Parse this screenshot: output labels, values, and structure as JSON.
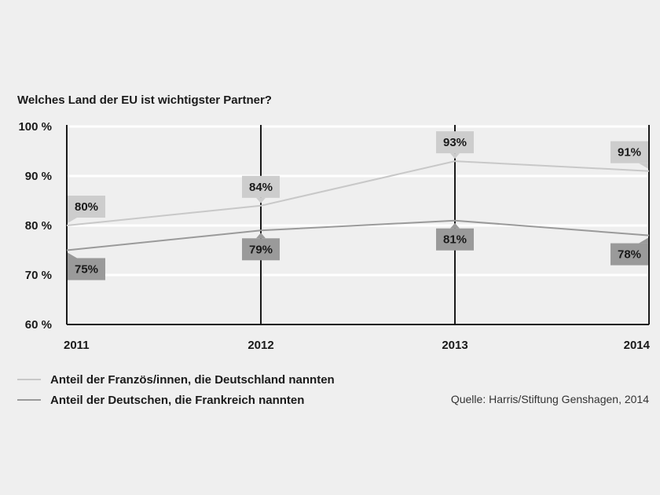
{
  "chart_data": {
    "type": "line",
    "title": "Welches Land der EU ist wichtigster Partner?",
    "x": [
      "2011",
      "2012",
      "2013",
      "2014"
    ],
    "ylim": [
      60,
      100
    ],
    "yticks": [
      60,
      70,
      80,
      90,
      100
    ],
    "ytick_labels": [
      "60 %",
      "70 %",
      "80 %",
      "90 %",
      "100 %"
    ],
    "grid": true,
    "legend_position": "bottom-left",
    "series": [
      {
        "name": "Anteil der Französ/innen, die Deutschland nannten",
        "values": [
          80,
          84,
          93,
          91
        ],
        "labels": [
          "80%",
          "84%",
          "93%",
          "91%"
        ],
        "label_side": [
          "above",
          "above",
          "above",
          "above"
        ],
        "line_color": "#c8c8c8",
        "label_bg": "#cdcdcd"
      },
      {
        "name": "Anteil der Deutschen, die Frankreich nannten",
        "values": [
          75,
          79,
          81,
          78
        ],
        "labels": [
          "75%",
          "79%",
          "81%",
          "78%"
        ],
        "label_side": [
          "below",
          "below",
          "below",
          "below"
        ],
        "line_color": "#9a9a9a",
        "label_bg": "#9a9a9a"
      }
    ]
  },
  "source": "Quelle: Harris/Stiftung Genshagen, 2014"
}
